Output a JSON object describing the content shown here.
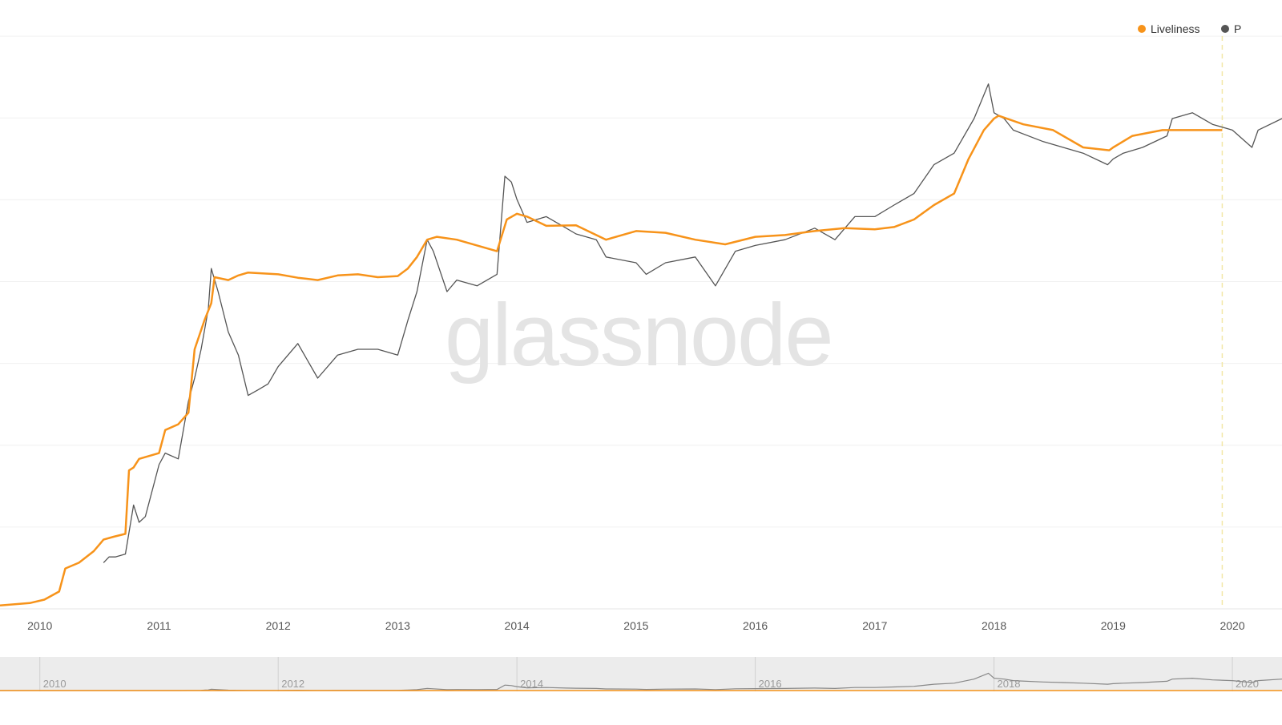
{
  "brand": {
    "watermark": "glassnode"
  },
  "legend": [
    {
      "name": "Liveliness",
      "color": "#f7931a"
    },
    {
      "name": "P",
      "color": "#555555"
    }
  ],
  "navigator": {
    "labels": [
      "2010",
      "2012",
      "2014",
      "2016",
      "2018",
      "2020"
    ],
    "x": [
      "2010-01-01",
      "2012-01-01",
      "2014-01-01",
      "2016-01-01",
      "2018-01-01",
      "2020-01-01"
    ]
  },
  "chart_data": {
    "type": "line",
    "title": "",
    "xlabel": "",
    "ylabel": "",
    "x_range": [
      "2009-09-01",
      "2020-06-01"
    ],
    "y_range": [
      0,
      1
    ],
    "y_ticks_visible": false,
    "grid": "horizontal",
    "legend_position": "top-right",
    "x_ticks": [
      "2010",
      "2011",
      "2012",
      "2013",
      "2014",
      "2015",
      "2016",
      "2017",
      "2018",
      "2019",
      "2020"
    ],
    "x_tick_dates": [
      "2010-01-01",
      "2011-01-01",
      "2012-01-01",
      "2013-01-01",
      "2014-01-01",
      "2015-01-01",
      "2016-01-01",
      "2017-01-01",
      "2018-01-01",
      "2019-01-01",
      "2020-01-01"
    ],
    "marker_date": "2019-12-01",
    "series": [
      {
        "name": "Liveliness",
        "color": "#f7931a",
        "x": [
          "2009-09-01",
          "2009-12-01",
          "2010-01-15",
          "2010-03-01",
          "2010-03-20",
          "2010-05-01",
          "2010-06-15",
          "2010-07-15",
          "2010-08-15",
          "2010-09-20",
          "2010-10-01",
          "2010-10-15",
          "2010-11-01",
          "2011-01-01",
          "2011-01-20",
          "2011-03-01",
          "2011-04-01",
          "2011-04-20",
          "2011-05-20",
          "2011-06-10",
          "2011-06-20",
          "2011-08-01",
          "2011-09-01",
          "2011-10-01",
          "2012-01-01",
          "2012-03-01",
          "2012-05-01",
          "2012-07-01",
          "2012-09-01",
          "2012-11-01",
          "2013-01-01",
          "2013-02-01",
          "2013-03-01",
          "2013-04-01",
          "2013-05-01",
          "2013-07-01",
          "2013-09-01",
          "2013-11-01",
          "2013-12-01",
          "2014-01-01",
          "2014-02-01",
          "2014-04-01",
          "2014-07-01",
          "2014-10-01",
          "2015-01-01",
          "2015-04-01",
          "2015-07-01",
          "2015-10-01",
          "2016-01-01",
          "2016-04-01",
          "2016-07-01",
          "2016-10-01",
          "2017-01-01",
          "2017-03-01",
          "2017-05-01",
          "2017-07-01",
          "2017-09-01",
          "2017-10-15",
          "2017-12-01",
          "2018-01-01",
          "2018-01-15",
          "2018-04-01",
          "2018-07-01",
          "2018-10-01",
          "2018-12-20",
          "2019-01-01",
          "2019-03-01",
          "2019-06-01",
          "2019-09-01",
          "2019-12-01"
        ],
        "y": [
          0.006,
          0.01,
          0.016,
          0.03,
          0.07,
          0.08,
          0.1,
          0.12,
          0.125,
          0.13,
          0.24,
          0.245,
          0.26,
          0.27,
          0.31,
          0.32,
          0.34,
          0.45,
          0.5,
          0.53,
          0.575,
          0.57,
          0.578,
          0.583,
          0.58,
          0.574,
          0.57,
          0.578,
          0.58,
          0.575,
          0.577,
          0.59,
          0.61,
          0.64,
          0.645,
          0.64,
          0.63,
          0.62,
          0.675,
          0.685,
          0.68,
          0.664,
          0.665,
          0.64,
          0.655,
          0.652,
          0.64,
          0.632,
          0.645,
          0.648,
          0.655,
          0.66,
          0.658,
          0.662,
          0.675,
          0.7,
          0.72,
          0.78,
          0.83,
          0.85,
          0.855,
          0.84,
          0.83,
          0.8,
          0.795,
          0.8,
          0.82,
          0.83,
          0.83,
          0.83
        ]
      },
      {
        "name": "P",
        "color": "#555555",
        "x": [
          "2010-07-15",
          "2010-08-01",
          "2010-08-20",
          "2010-09-20",
          "2010-10-15",
          "2010-11-01",
          "2010-11-20",
          "2011-01-01",
          "2011-01-20",
          "2011-03-01",
          "2011-04-01",
          "2011-04-20",
          "2011-05-10",
          "2011-06-01",
          "2011-06-10",
          "2011-07-01",
          "2011-08-01",
          "2011-09-01",
          "2011-10-01",
          "2011-11-01",
          "2011-12-01",
          "2012-01-01",
          "2012-03-01",
          "2012-05-01",
          "2012-07-01",
          "2012-09-01",
          "2012-11-01",
          "2013-01-01",
          "2013-02-01",
          "2013-03-01",
          "2013-04-01",
          "2013-04-20",
          "2013-06-01",
          "2013-07-01",
          "2013-09-01",
          "2013-11-01",
          "2013-11-25",
          "2013-12-15",
          "2014-01-01",
          "2014-02-01",
          "2014-04-01",
          "2014-06-01",
          "2014-07-01",
          "2014-09-01",
          "2014-10-01",
          "2015-01-01",
          "2015-02-01",
          "2015-04-01",
          "2015-07-01",
          "2015-09-01",
          "2015-11-01",
          "2016-01-01",
          "2016-04-01",
          "2016-07-01",
          "2016-09-01",
          "2016-11-01",
          "2017-01-01",
          "2017-03-01",
          "2017-05-01",
          "2017-07-01",
          "2017-09-01",
          "2017-11-01",
          "2017-12-15",
          "2018-01-01",
          "2018-02-01",
          "2018-03-01",
          "2018-06-01",
          "2018-08-01",
          "2018-10-01",
          "2018-12-15",
          "2019-01-01",
          "2019-02-01",
          "2019-04-01",
          "2019-06-15",
          "2019-07-01",
          "2019-09-01",
          "2019-11-01",
          "2020-01-01",
          "2020-03-01",
          "2020-03-20",
          "2020-06-01"
        ],
        "y": [
          0.08,
          0.09,
          0.09,
          0.095,
          0.18,
          0.15,
          0.16,
          0.25,
          0.27,
          0.26,
          0.36,
          0.4,
          0.45,
          0.52,
          0.59,
          0.55,
          0.48,
          0.44,
          0.37,
          0.38,
          0.39,
          0.42,
          0.46,
          0.4,
          0.44,
          0.45,
          0.45,
          0.44,
          0.5,
          0.55,
          0.64,
          0.62,
          0.55,
          0.57,
          0.56,
          0.58,
          0.75,
          0.74,
          0.71,
          0.67,
          0.68,
          0.66,
          0.65,
          0.64,
          0.61,
          0.6,
          0.58,
          0.6,
          0.61,
          0.56,
          0.62,
          0.63,
          0.64,
          0.66,
          0.64,
          0.68,
          0.68,
          0.7,
          0.72,
          0.77,
          0.79,
          0.85,
          0.91,
          0.86,
          0.85,
          0.83,
          0.81,
          0.8,
          0.79,
          0.77,
          0.78,
          0.79,
          0.8,
          0.82,
          0.85,
          0.86,
          0.84,
          0.83,
          0.8,
          0.83,
          0.85
        ]
      }
    ]
  }
}
